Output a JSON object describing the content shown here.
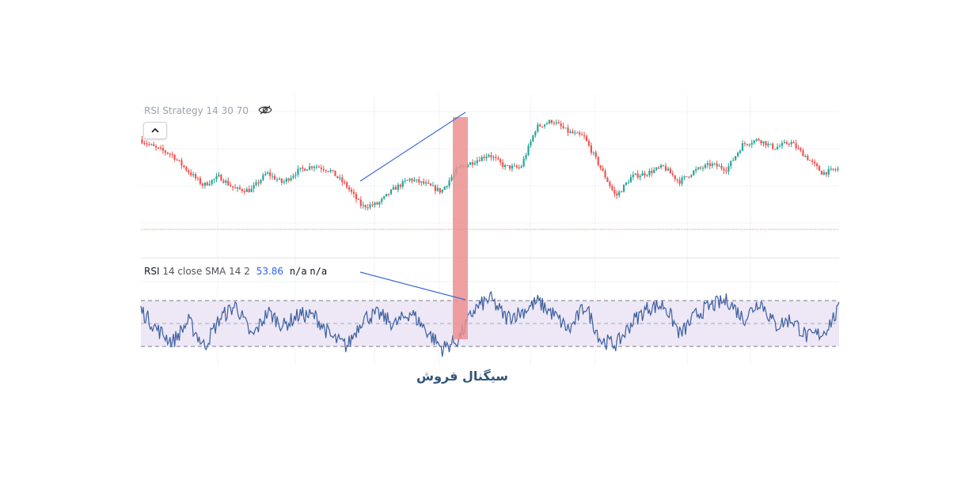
{
  "price_pane": {
    "legend": "RSI Strategy 14 30 70",
    "eye_icon": "eye-hidden-icon",
    "collapse_icon": "chevron-up-icon"
  },
  "rsi_pane": {
    "legend_name": "RSI",
    "legend_params": "14 close SMA 14 2",
    "legend_value": "53.86",
    "legend_na1": "n/a",
    "legend_na2": "n/a"
  },
  "caption": "سیگنال فروش",
  "colors": {
    "up": "#26a69a",
    "down": "#ef5350",
    "rsi_line": "#3b5fa0",
    "rsi_band": "#ede7f6",
    "divergence_line": "#3a6ad8",
    "signal_highlight": "#ec8f8f",
    "caption": "#33557a"
  },
  "chart_data": [
    {
      "type": "line",
      "title": "",
      "description_of_series": "price (candlestick, approximate normalized level 0-100)",
      "x": [
        0,
        10,
        20,
        30,
        40,
        50,
        60,
        70,
        80,
        90,
        100,
        110,
        120,
        130,
        140,
        150,
        160,
        170,
        180,
        190,
        200,
        210,
        220,
        230,
        240,
        250,
        260,
        270,
        280,
        290,
        300,
        310,
        320,
        330,
        340,
        350,
        360,
        370,
        380,
        390,
        400,
        410,
        420,
        430,
        440
      ],
      "values": [
        82,
        75,
        70,
        57,
        45,
        52,
        42,
        41,
        55,
        47,
        57,
        61,
        57,
        45,
        28,
        30,
        42,
        50,
        46,
        40,
        58,
        64,
        70,
        60,
        59,
        92,
        97,
        88,
        84,
        60,
        36,
        52,
        55,
        60,
        48,
        57,
        62,
        58,
        78,
        82,
        75,
        80,
        68,
        55,
        58
      ],
      "ylim": [
        0,
        100
      ]
    },
    {
      "type": "line",
      "title": "",
      "series_name": "RSI",
      "x": [
        0,
        10,
        20,
        30,
        40,
        50,
        60,
        70,
        80,
        90,
        100,
        110,
        120,
        130,
        140,
        150,
        160,
        170,
        180,
        190,
        200,
        210,
        220,
        230,
        240,
        250,
        260,
        270,
        280,
        290,
        300,
        310,
        320,
        330,
        340,
        350,
        360,
        370,
        380,
        390,
        400,
        410,
        420,
        430,
        440
      ],
      "values": [
        62,
        45,
        34,
        52,
        30,
        55,
        66,
        38,
        60,
        48,
        58,
        56,
        38,
        30,
        55,
        58,
        49,
        60,
        44,
        28,
        36,
        62,
        72,
        55,
        60,
        69,
        58,
        44,
        66,
        35,
        32,
        52,
        64,
        66,
        40,
        58,
        66,
        70,
        54,
        70,
        48,
        54,
        38,
        42,
        62
      ],
      "ylim": [
        0,
        100
      ],
      "bands": [
        30,
        70
      ]
    }
  ]
}
